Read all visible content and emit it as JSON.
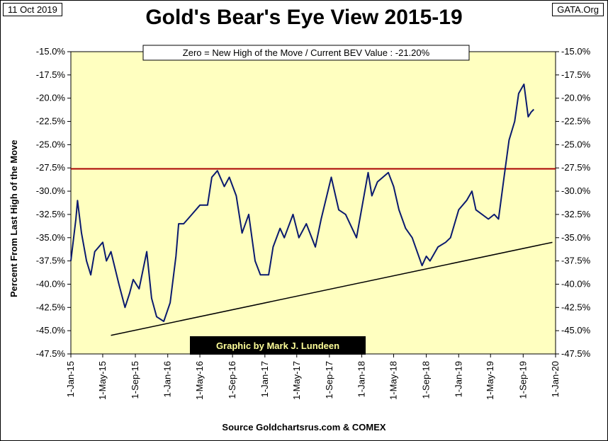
{
  "header": {
    "date": "11 Oct 2019",
    "source_tag": "GATA.Org",
    "title": "Gold's Bear's Eye View 2015-19"
  },
  "footer": {
    "source": "Source Goldchartsrus.com & COMEX"
  },
  "colors": {
    "plot_bg": "#ffffc0",
    "series": "#0a1a6e",
    "reference_line": "#aa0000",
    "trend_line": "#000000",
    "credit_bg": "#000000",
    "credit_text": "#ffff99"
  },
  "chart_data": {
    "type": "line",
    "title": "Gold's Bear's Eye View 2015-19",
    "annotation": "Zero = New High of the Move / Current  BEV Value : -21.20%",
    "credit": "Graphic by Mark J. Lundeen",
    "ylabel": "Percent  From Last High of the Move",
    "ylim": [
      -47.5,
      -15.0
    ],
    "x_range": [
      "2015-01-01",
      "2020-01-01"
    ],
    "y_ticks": [
      "-15.0%",
      "-17.5%",
      "-20.0%",
      "-22.5%",
      "-25.0%",
      "-27.5%",
      "-30.0%",
      "-32.5%",
      "-35.0%",
      "-37.5%",
      "-40.0%",
      "-42.5%",
      "-45.0%",
      "-47.5%"
    ],
    "y_tick_values": [
      -15.0,
      -17.5,
      -20.0,
      -22.5,
      -25.0,
      -27.5,
      -30.0,
      -32.5,
      -35.0,
      -37.5,
      -40.0,
      -42.5,
      -45.0,
      -47.5
    ],
    "x_ticks": [
      "1-Jan-15",
      "1-May-15",
      "1-Sep-15",
      "1-Jan-16",
      "1-May-16",
      "1-Sep-16",
      "1-Jan-17",
      "1-May-17",
      "1-Sep-17",
      "1-Jan-18",
      "1-May-18",
      "1-Sep-18",
      "1-Jan-19",
      "1-May-19",
      "1-Sep-19",
      "1-Jan-20"
    ],
    "x_tick_dates": [
      "2015-01-01",
      "2015-05-01",
      "2015-09-01",
      "2016-01-01",
      "2016-05-01",
      "2016-09-01",
      "2017-01-01",
      "2017-05-01",
      "2017-09-01",
      "2018-01-01",
      "2018-05-01",
      "2018-09-01",
      "2019-01-01",
      "2019-05-01",
      "2019-09-01",
      "2020-01-01"
    ],
    "grid": false,
    "series": [
      {
        "x": [
          "2015-01-01",
          "2015-01-20",
          "2015-01-26",
          "2015-02-10",
          "2015-03-01",
          "2015-03-17",
          "2015-04-01",
          "2015-05-01",
          "2015-05-15",
          "2015-06-01",
          "2015-07-01",
          "2015-07-24",
          "2015-08-10",
          "2015-08-24",
          "2015-09-15",
          "2015-10-14",
          "2015-11-01",
          "2015-11-20",
          "2015-12-17",
          "2016-01-10",
          "2016-02-01",
          "2016-02-11",
          "2016-03-01",
          "2016-04-01",
          "2016-05-01",
          "2016-05-30",
          "2016-06-15",
          "2016-07-06",
          "2016-08-01",
          "2016-08-20",
          "2016-09-15",
          "2016-10-07",
          "2016-11-01",
          "2016-11-25",
          "2016-12-15",
          "2017-01-15",
          "2017-02-01",
          "2017-02-27",
          "2017-03-15",
          "2017-04-17",
          "2017-05-09",
          "2017-06-06",
          "2017-07-10",
          "2017-08-01",
          "2017-09-08",
          "2017-10-06",
          "2017-11-01",
          "2017-12-12",
          "2018-01-25",
          "2018-02-08",
          "2018-03-01",
          "2018-04-11",
          "2018-05-01",
          "2018-05-21",
          "2018-06-15",
          "2018-07-10",
          "2018-08-16",
          "2018-09-01",
          "2018-09-15",
          "2018-10-15",
          "2018-11-13",
          "2018-12-01",
          "2019-01-01",
          "2019-01-31",
          "2019-02-20",
          "2019-03-07",
          "2019-04-23",
          "2019-05-15",
          "2019-05-31",
          "2019-06-21",
          "2019-07-10",
          "2019-07-31",
          "2019-08-15",
          "2019-09-04",
          "2019-09-20",
          "2019-10-01",
          "2019-10-11"
        ],
        "values": [
          -37.5,
          -33.0,
          -31.0,
          -34.5,
          -37.5,
          -39.0,
          -36.5,
          -35.5,
          -37.5,
          -36.5,
          -40.0,
          -42.5,
          -41.0,
          -39.5,
          -40.5,
          -36.5,
          -41.5,
          -43.5,
          -44.0,
          -42.0,
          -37.0,
          -33.5,
          -33.5,
          -32.5,
          -31.5,
          -31.5,
          -28.5,
          -27.8,
          -29.5,
          -28.5,
          -30.5,
          -34.5,
          -32.5,
          -37.5,
          -39.0,
          -39.0,
          -36.0,
          -34.0,
          -35.0,
          -32.5,
          -35.0,
          -33.5,
          -36.0,
          -33.0,
          -28.5,
          -32.0,
          -32.5,
          -35.0,
          -28.0,
          -30.5,
          -29.0,
          -28.0,
          -29.5,
          -32.0,
          -34.0,
          -35.0,
          -38.0,
          -37.0,
          -37.5,
          -36.0,
          -35.5,
          -35.0,
          -32.0,
          -31.0,
          -30.0,
          -32.0,
          -33.0,
          -32.5,
          -33.0,
          -28.5,
          -24.5,
          -22.5,
          -19.5,
          -18.5,
          -22.0,
          -21.5,
          -21.2
        ]
      }
    ],
    "reference_line": {
      "y": -27.6
    },
    "trend_line": {
      "x": [
        "2015-06-01",
        "2019-12-20"
      ],
      "y": [
        -45.5,
        -35.5
      ]
    }
  }
}
